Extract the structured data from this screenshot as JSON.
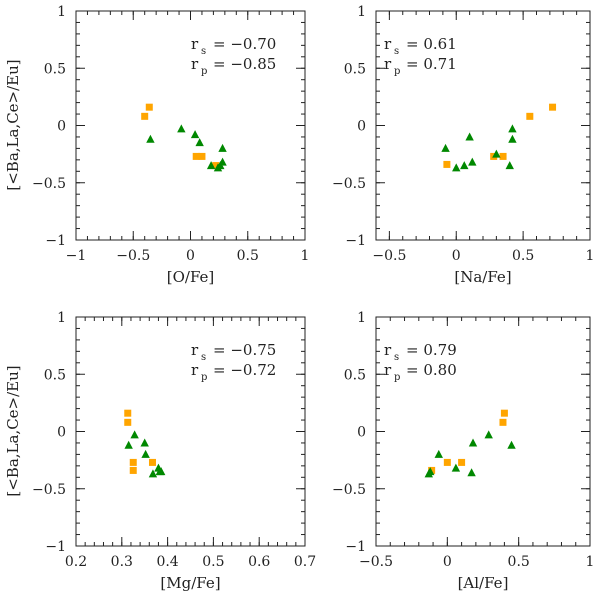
{
  "colors": {
    "square": "#ffa500",
    "triangle": "#008800",
    "axis": "#222222"
  },
  "ylabel": "[<Ba,La,Ce>/Eu]",
  "chart_data": [
    {
      "type": "scatter",
      "xlabel": "[O/Fe]",
      "ylabel": "[<Ba,La,Ce>/Eu]",
      "xlim": [
        -1,
        1
      ],
      "ylim": [
        -1,
        1
      ],
      "xticks": [
        -1,
        -0.5,
        0,
        0.5,
        1
      ],
      "xticklabels": [
        "−1",
        "−0.5",
        "0",
        "0.5",
        "1"
      ],
      "yticks": [
        -1,
        -0.5,
        0,
        0.5,
        1
      ],
      "yticklabels": [
        "−1",
        "−0.5",
        "0",
        "0.5",
        "1"
      ],
      "xminor": 0.1,
      "yminor": 0.1,
      "stats": {
        "rs_name": "r",
        "rs_sub": "s",
        "rs_value": "= −0.70",
        "rp_name": "r",
        "rp_sub": "p",
        "rp_value": "= −0.85"
      },
      "series": [
        {
          "name": "squares",
          "marker": "square",
          "points": [
            [
              -0.4,
              0.08
            ],
            [
              -0.36,
              0.16
            ],
            [
              0.05,
              -0.27
            ],
            [
              0.1,
              -0.27
            ],
            [
              0.22,
              -0.35
            ]
          ]
        },
        {
          "name": "triangles",
          "marker": "triangle",
          "points": [
            [
              -0.35,
              -0.12
            ],
            [
              -0.08,
              -0.03
            ],
            [
              0.04,
              -0.08
            ],
            [
              0.08,
              -0.15
            ],
            [
              0.18,
              -0.35
            ],
            [
              0.24,
              -0.37
            ],
            [
              0.28,
              -0.32
            ],
            [
              0.28,
              -0.2
            ],
            [
              0.26,
              -0.35
            ]
          ]
        }
      ]
    },
    {
      "type": "scatter",
      "xlabel": "[Na/Fe]",
      "ylabel": "[<Ba,La,Ce>/Eu]",
      "xlim": [
        -0.6,
        1
      ],
      "ylim": [
        -1,
        1
      ],
      "xticks": [
        -0.5,
        0,
        0.5,
        1
      ],
      "xticklabels": [
        "−0.5",
        "0",
        "0.5",
        "1"
      ],
      "yticks": [
        -1,
        -0.5,
        0,
        0.5,
        1
      ],
      "yticklabels": [
        "−1",
        "−0.5",
        "0",
        "0.5",
        "1"
      ],
      "xminor": 0.1,
      "yminor": 0.1,
      "stats": {
        "rs_name": "r",
        "rs_sub": "s",
        "rs_value": "= 0.61",
        "rp_name": "r",
        "rp_sub": "p",
        "rp_value": "= 0.71"
      },
      "series": [
        {
          "name": "squares",
          "marker": "square",
          "points": [
            [
              -0.07,
              -0.34
            ],
            [
              0.28,
              -0.27
            ],
            [
              0.35,
              -0.27
            ],
            [
              0.55,
              0.08
            ],
            [
              0.72,
              0.16
            ]
          ]
        },
        {
          "name": "triangles",
          "marker": "triangle",
          "points": [
            [
              -0.08,
              -0.2
            ],
            [
              0.0,
              -0.37
            ],
            [
              0.06,
              -0.35
            ],
            [
              0.1,
              -0.1
            ],
            [
              0.12,
              -0.32
            ],
            [
              0.4,
              -0.35
            ],
            [
              0.42,
              -0.03
            ],
            [
              0.42,
              -0.12
            ],
            [
              0.3,
              -0.25
            ]
          ]
        }
      ]
    },
    {
      "type": "scatter",
      "xlabel": "[Mg/Fe]",
      "ylabel": "[<Ba,La,Ce>/Eu]",
      "xlim": [
        0.2,
        0.7
      ],
      "ylim": [
        -1,
        1
      ],
      "xticks": [
        0.2,
        0.3,
        0.4,
        0.5,
        0.6,
        0.7
      ],
      "xticklabels": [
        "0.2",
        "0.3",
        "0.4",
        "0.5",
        "0.6",
        "0.7"
      ],
      "yticks": [
        -1,
        -0.5,
        0,
        0.5,
        1
      ],
      "yticklabels": [
        "−1",
        "−0.5",
        "0",
        "0.5",
        "1"
      ],
      "xminor": 0.02,
      "yminor": 0.1,
      "stats": {
        "rs_name": "r",
        "rs_sub": "s",
        "rs_value": "= −0.75",
        "rp_name": "r",
        "rp_sub": "p",
        "rp_value": "= −0.72"
      },
      "series": [
        {
          "name": "squares",
          "marker": "square",
          "points": [
            [
              0.313,
              0.16
            ],
            [
              0.313,
              0.08
            ],
            [
              0.325,
              -0.27
            ],
            [
              0.325,
              -0.34
            ],
            [
              0.367,
              -0.27
            ]
          ]
        },
        {
          "name": "triangles",
          "marker": "triangle",
          "points": [
            [
              0.315,
              -0.12
            ],
            [
              0.328,
              -0.03
            ],
            [
              0.35,
              -0.1
            ],
            [
              0.352,
              -0.2
            ],
            [
              0.368,
              -0.37
            ],
            [
              0.38,
              -0.32
            ],
            [
              0.383,
              -0.35
            ],
            [
              0.386,
              -0.35
            ]
          ]
        }
      ]
    },
    {
      "type": "scatter",
      "xlabel": "[Al/Fe]",
      "ylabel": "[<Ba,La,Ce>/Eu]",
      "xlim": [
        -0.5,
        1
      ],
      "ylim": [
        -1,
        1
      ],
      "xticks": [
        -0.5,
        0,
        0.5,
        1
      ],
      "xticklabels": [
        "−0.5",
        "0",
        "0.5",
        "1"
      ],
      "yticks": [
        -1,
        -0.5,
        0,
        0.5,
        1
      ],
      "yticklabels": [
        "−1",
        "−0.5",
        "0",
        "0.5",
        "1"
      ],
      "xminor": 0.1,
      "yminor": 0.1,
      "stats": {
        "rs_name": "r",
        "rs_sub": "s",
        "rs_value": "= 0.79",
        "rp_name": "r",
        "rp_sub": "p",
        "rp_value": "= 0.80"
      },
      "series": [
        {
          "name": "squares",
          "marker": "square",
          "points": [
            [
              -0.11,
              -0.34
            ],
            [
              0.0,
              -0.27
            ],
            [
              0.1,
              -0.27
            ],
            [
              0.39,
              0.08
            ],
            [
              0.4,
              0.16
            ]
          ]
        },
        {
          "name": "triangles",
          "marker": "triangle",
          "points": [
            [
              -0.13,
              -0.37
            ],
            [
              -0.06,
              -0.2
            ],
            [
              0.06,
              -0.32
            ],
            [
              0.17,
              -0.36
            ],
            [
              0.18,
              -0.1
            ],
            [
              0.29,
              -0.03
            ],
            [
              0.45,
              -0.12
            ],
            [
              -0.12,
              -0.35
            ]
          ]
        }
      ]
    }
  ]
}
